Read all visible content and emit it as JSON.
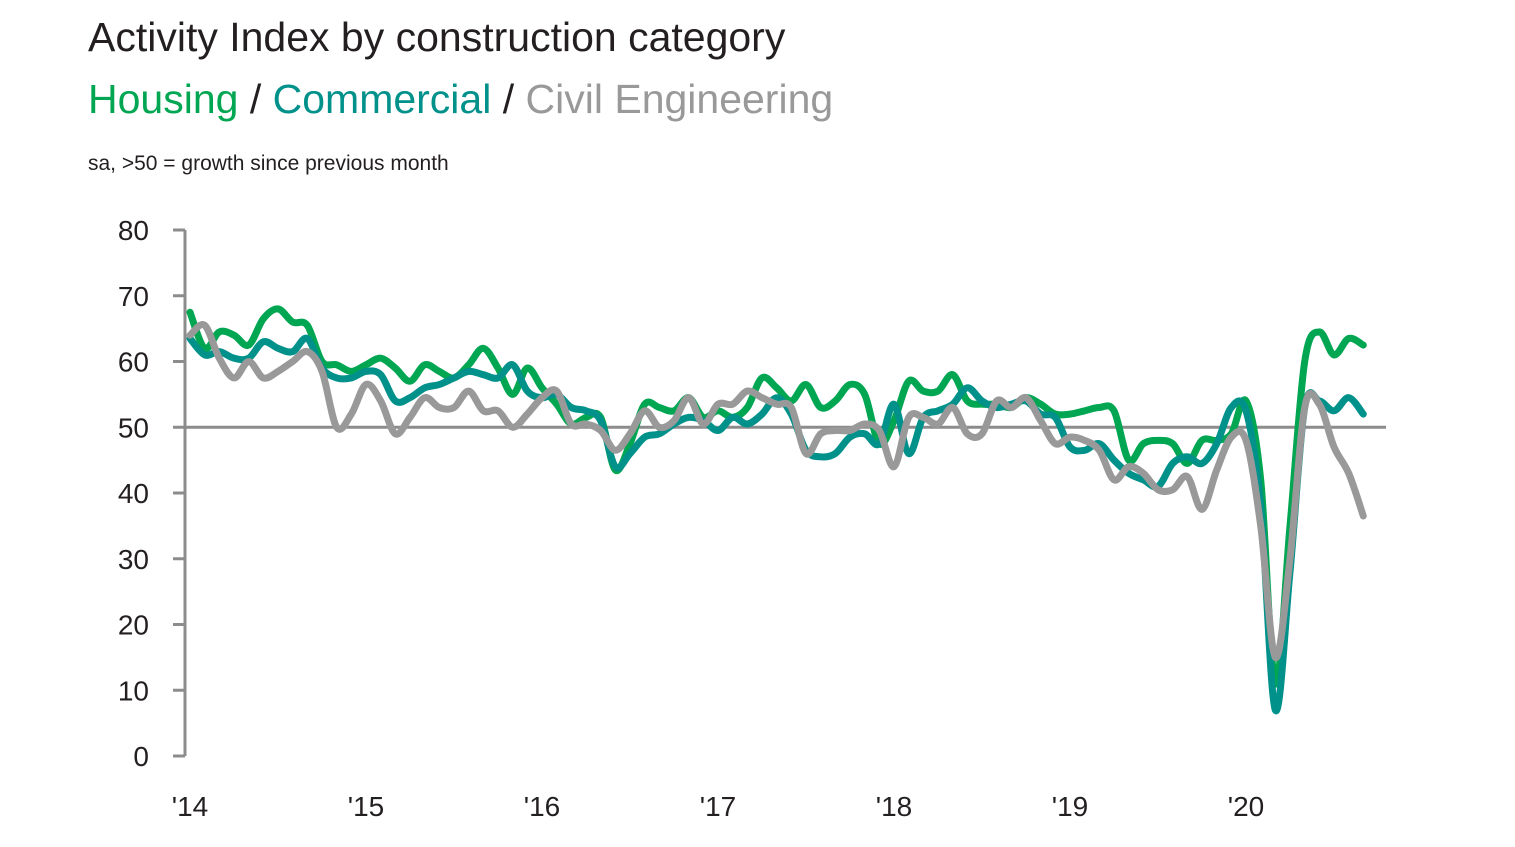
{
  "chart_data": {
    "type": "line",
    "title": "Activity Index by construction category",
    "subtitle_parts": [
      {
        "text": "Housing",
        "color": "#00a651"
      },
      {
        "text": " / ",
        "color": "#231f20"
      },
      {
        "text": "Commercial",
        "color": "#00918a"
      },
      {
        "text": " / ",
        "color": "#231f20"
      },
      {
        "text": "Civil Engineering",
        "color": "#999999"
      }
    ],
    "note": "sa, >50 = growth since previous month",
    "ylim": [
      0,
      80
    ],
    "yticks": [
      0,
      10,
      20,
      30,
      40,
      50,
      60,
      70,
      80
    ],
    "reference_line": 50,
    "x_ticks": [
      {
        "label": "'14",
        "year": 2014
      },
      {
        "label": "'15",
        "year": 2015
      },
      {
        "label": "'16",
        "year": 2016
      },
      {
        "label": "'17",
        "year": 2017
      },
      {
        "label": "'18",
        "year": 2018
      },
      {
        "label": "'19",
        "year": 2019
      },
      {
        "label": "'20",
        "year": 2020
      }
    ],
    "x_start": "2014-01",
    "series": [
      {
        "name": "Housing",
        "color": "#00a651",
        "values": [
          67.5,
          62.0,
          64.5,
          64.0,
          62.5,
          66.5,
          68.0,
          66.0,
          65.5,
          60.0,
          59.5,
          58.5,
          59.5,
          60.5,
          59.0,
          57.0,
          59.5,
          58.5,
          57.5,
          59.5,
          62.0,
          59.0,
          55.0,
          59.0,
          56.0,
          53.5,
          50.5,
          51.5,
          51.5,
          43.5,
          47.5,
          53.5,
          53.0,
          52.5,
          54.5,
          51.5,
          52.5,
          51.5,
          53.0,
          57.5,
          56.0,
          54.0,
          56.5,
          53.0,
          54.0,
          56.5,
          55.0,
          47.5,
          51.0,
          57.0,
          55.5,
          55.5,
          58.0,
          54.0,
          53.5,
          53.5,
          53.0,
          54.5,
          53.5,
          52.0,
          52.0,
          52.5,
          53.0,
          52.5,
          45.0,
          47.5,
          48.0,
          47.5,
          44.5,
          48.0,
          48.0,
          49.0,
          54.0,
          42.0,
          11.0,
          35.0,
          60.0,
          64.5,
          61.0,
          63.5,
          62.5
        ],
        "marker": "none"
      },
      {
        "name": "Commercial",
        "color": "#00918a",
        "values": [
          63.5,
          61.0,
          61.5,
          60.5,
          60.5,
          63.0,
          62.0,
          61.5,
          63.5,
          59.0,
          57.5,
          57.5,
          58.5,
          58.0,
          54.0,
          54.5,
          56.0,
          56.5,
          57.5,
          58.5,
          58.0,
          57.5,
          59.5,
          55.5,
          54.5,
          55.0,
          53.0,
          52.5,
          51.0,
          44.0,
          46.0,
          48.5,
          49.0,
          50.5,
          51.5,
          51.0,
          49.5,
          51.5,
          50.5,
          52.0,
          54.5,
          52.0,
          46.5,
          45.5,
          46.0,
          48.5,
          49.0,
          47.5,
          53.5,
          46.0,
          51.5,
          52.5,
          53.5,
          56.0,
          54.0,
          53.0,
          53.5,
          54.0,
          52.0,
          51.5,
          47.0,
          46.5,
          47.5,
          45.0,
          43.0,
          42.0,
          41.0,
          44.5,
          45.5,
          44.5,
          47.5,
          53.0,
          52.5,
          38.0,
          7.0,
          28.0,
          53.0,
          54.0,
          52.5,
          54.5,
          52.0
        ],
        "marker": "none"
      },
      {
        "name": "Civil Engineering",
        "color": "#999999",
        "values": [
          64.0,
          65.5,
          60.5,
          57.5,
          60.0,
          57.5,
          58.5,
          60.0,
          61.5,
          58.5,
          50.0,
          52.0,
          56.5,
          54.0,
          49.0,
          51.5,
          54.5,
          53.0,
          53.0,
          55.5,
          52.5,
          52.5,
          50.0,
          52.0,
          54.5,
          55.5,
          50.5,
          50.5,
          49.5,
          46.5,
          49.0,
          52.5,
          50.0,
          51.0,
          54.5,
          50.5,
          53.5,
          53.5,
          55.5,
          54.5,
          53.5,
          53.0,
          46.0,
          49.0,
          49.5,
          49.5,
          50.5,
          49.5,
          44.0,
          51.5,
          51.5,
          50.5,
          53.0,
          49.0,
          49.0,
          54.0,
          53.0,
          54.5,
          51.0,
          47.5,
          48.5,
          48.0,
          46.5,
          42.0,
          44.0,
          43.0,
          40.5,
          40.5,
          42.5,
          37.5,
          43.5,
          48.5,
          48.0,
          35.0,
          15.0,
          30.0,
          53.0,
          53.5,
          47.0,
          43.0,
          36.5
        ],
        "marker": "none"
      }
    ]
  }
}
